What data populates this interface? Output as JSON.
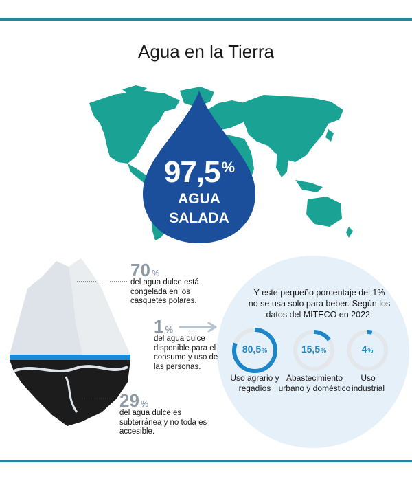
{
  "title": "Agua en la Tierra",
  "salt_water": {
    "value": "97,5",
    "unit": "%",
    "line1": "AGUA",
    "line2": "SALADA"
  },
  "iceberg": {
    "frozen": {
      "value": "70",
      "unit": "%",
      "lines": [
        "del agua dulce está",
        "congelada en los",
        "casquetes polares."
      ]
    },
    "available": {
      "value": "1",
      "unit": "%",
      "lines": [
        "del agua dulce",
        "disponible para el",
        "consumo y uso de",
        "las personas."
      ]
    },
    "underground": {
      "value": "29",
      "unit": "%",
      "lines": [
        "del agua dulce es",
        "subterránea y no toda es",
        "accesible."
      ]
    }
  },
  "usage": {
    "intro_lines": [
      "Y este pequeño porcentaje del 1%",
      "no se usa solo para beber. Según los",
      "datos del MITECO en 2022:"
    ],
    "items": [
      {
        "value": "80,5",
        "unit": "%",
        "fraction": 0.805,
        "label_lines": [
          "Uso agrario y",
          "regadíos"
        ]
      },
      {
        "value": "15,5",
        "unit": "%",
        "fraction": 0.155,
        "label_lines": [
          "Abastecimiento",
          "urbano y doméstico"
        ]
      },
      {
        "value": "4",
        "unit": "%",
        "fraction": 0.04,
        "label_lines": [
          "Uso",
          "industrial"
        ]
      }
    ]
  },
  "colors": {
    "accent_bar": "#1f8a99",
    "map": "#1aa394",
    "drop": "#1b4f9c",
    "ring": "#1c86c8",
    "ring_track": "#e4e7ea",
    "circle_bg": "#e6f0f9",
    "ice": "#dde3e8",
    "water_line": "#1a8ad8",
    "underwater": "#1c1c1c",
    "stat_gray": "#8d9aa6"
  }
}
